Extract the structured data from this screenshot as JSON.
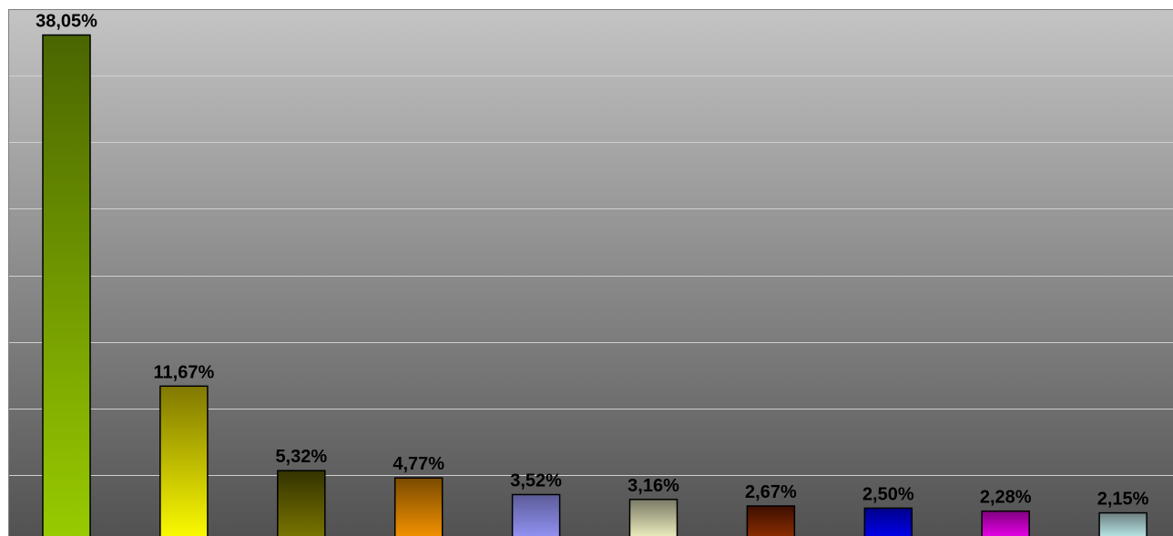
{
  "chart_data": {
    "type": "bar",
    "categories": [
      "",
      "",
      "",
      "",
      "",
      "",
      "",
      "",
      "",
      ""
    ],
    "values": [
      38.05,
      11.67,
      5.32,
      4.77,
      3.52,
      3.16,
      2.67,
      2.5,
      2.28,
      2.15
    ],
    "value_labels": [
      "38,05%",
      "11,67%",
      "5,32%",
      "4,77%",
      "3,52%",
      "3,16%",
      "2,67%",
      "2,50%",
      "2,28%",
      "2,15%"
    ],
    "title": "",
    "xlabel": "",
    "ylabel": "",
    "ylim": [
      0,
      40
    ],
    "grid": true,
    "legend": "none",
    "bar_colors": [
      [
        "#4a6500",
        "#99cc00"
      ],
      [
        "#807800",
        "#ffff00"
      ],
      [
        "#333300",
        "#807a00"
      ],
      [
        "#7a4a00",
        "#ff9900"
      ],
      [
        "#5c5c99",
        "#9999ff"
      ],
      [
        "#7a7a66",
        "#ffffcc"
      ],
      [
        "#3d0f00",
        "#993300"
      ],
      [
        "#00008a",
        "#0000ff"
      ],
      [
        "#800080",
        "#ff00ff"
      ],
      [
        "#6d8080",
        "#ccffff"
      ]
    ],
    "plot_background": [
      "#c4c4c4",
      "#525252"
    ]
  }
}
